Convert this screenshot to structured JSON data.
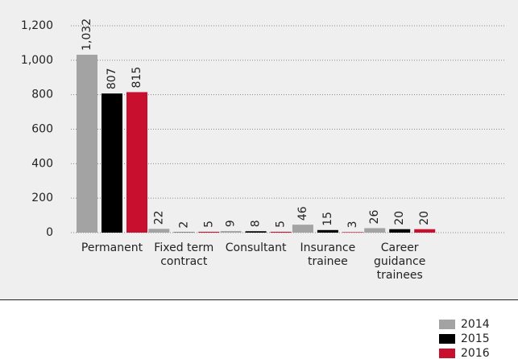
{
  "chart_data": {
    "type": "bar",
    "categories": [
      "Permanent",
      "Fixed term contract",
      "Consultant",
      "Insurance trainee",
      "Career guidance trainees"
    ],
    "series": [
      {
        "name": "2014",
        "color": "#a3a3a3",
        "values": [
          1032,
          22,
          9,
          46,
          26
        ],
        "value_labels": [
          "1,032",
          "22",
          "9",
          "46",
          "26"
        ]
      },
      {
        "name": "2015",
        "color": "#000000",
        "values": [
          807,
          2,
          8,
          15,
          20
        ]
      },
      {
        "name": "2016",
        "color": "#c8102e",
        "values": [
          815,
          5,
          5,
          3,
          20
        ]
      }
    ],
    "ylim": [
      0,
      1200
    ],
    "yticks": [
      0,
      200,
      400,
      600,
      800,
      {
        "value": 1000,
        "label": "1,000"
      },
      {
        "value": 1200,
        "label": "1,200"
      }
    ],
    "grid": true,
    "legend": "bottom-right"
  }
}
